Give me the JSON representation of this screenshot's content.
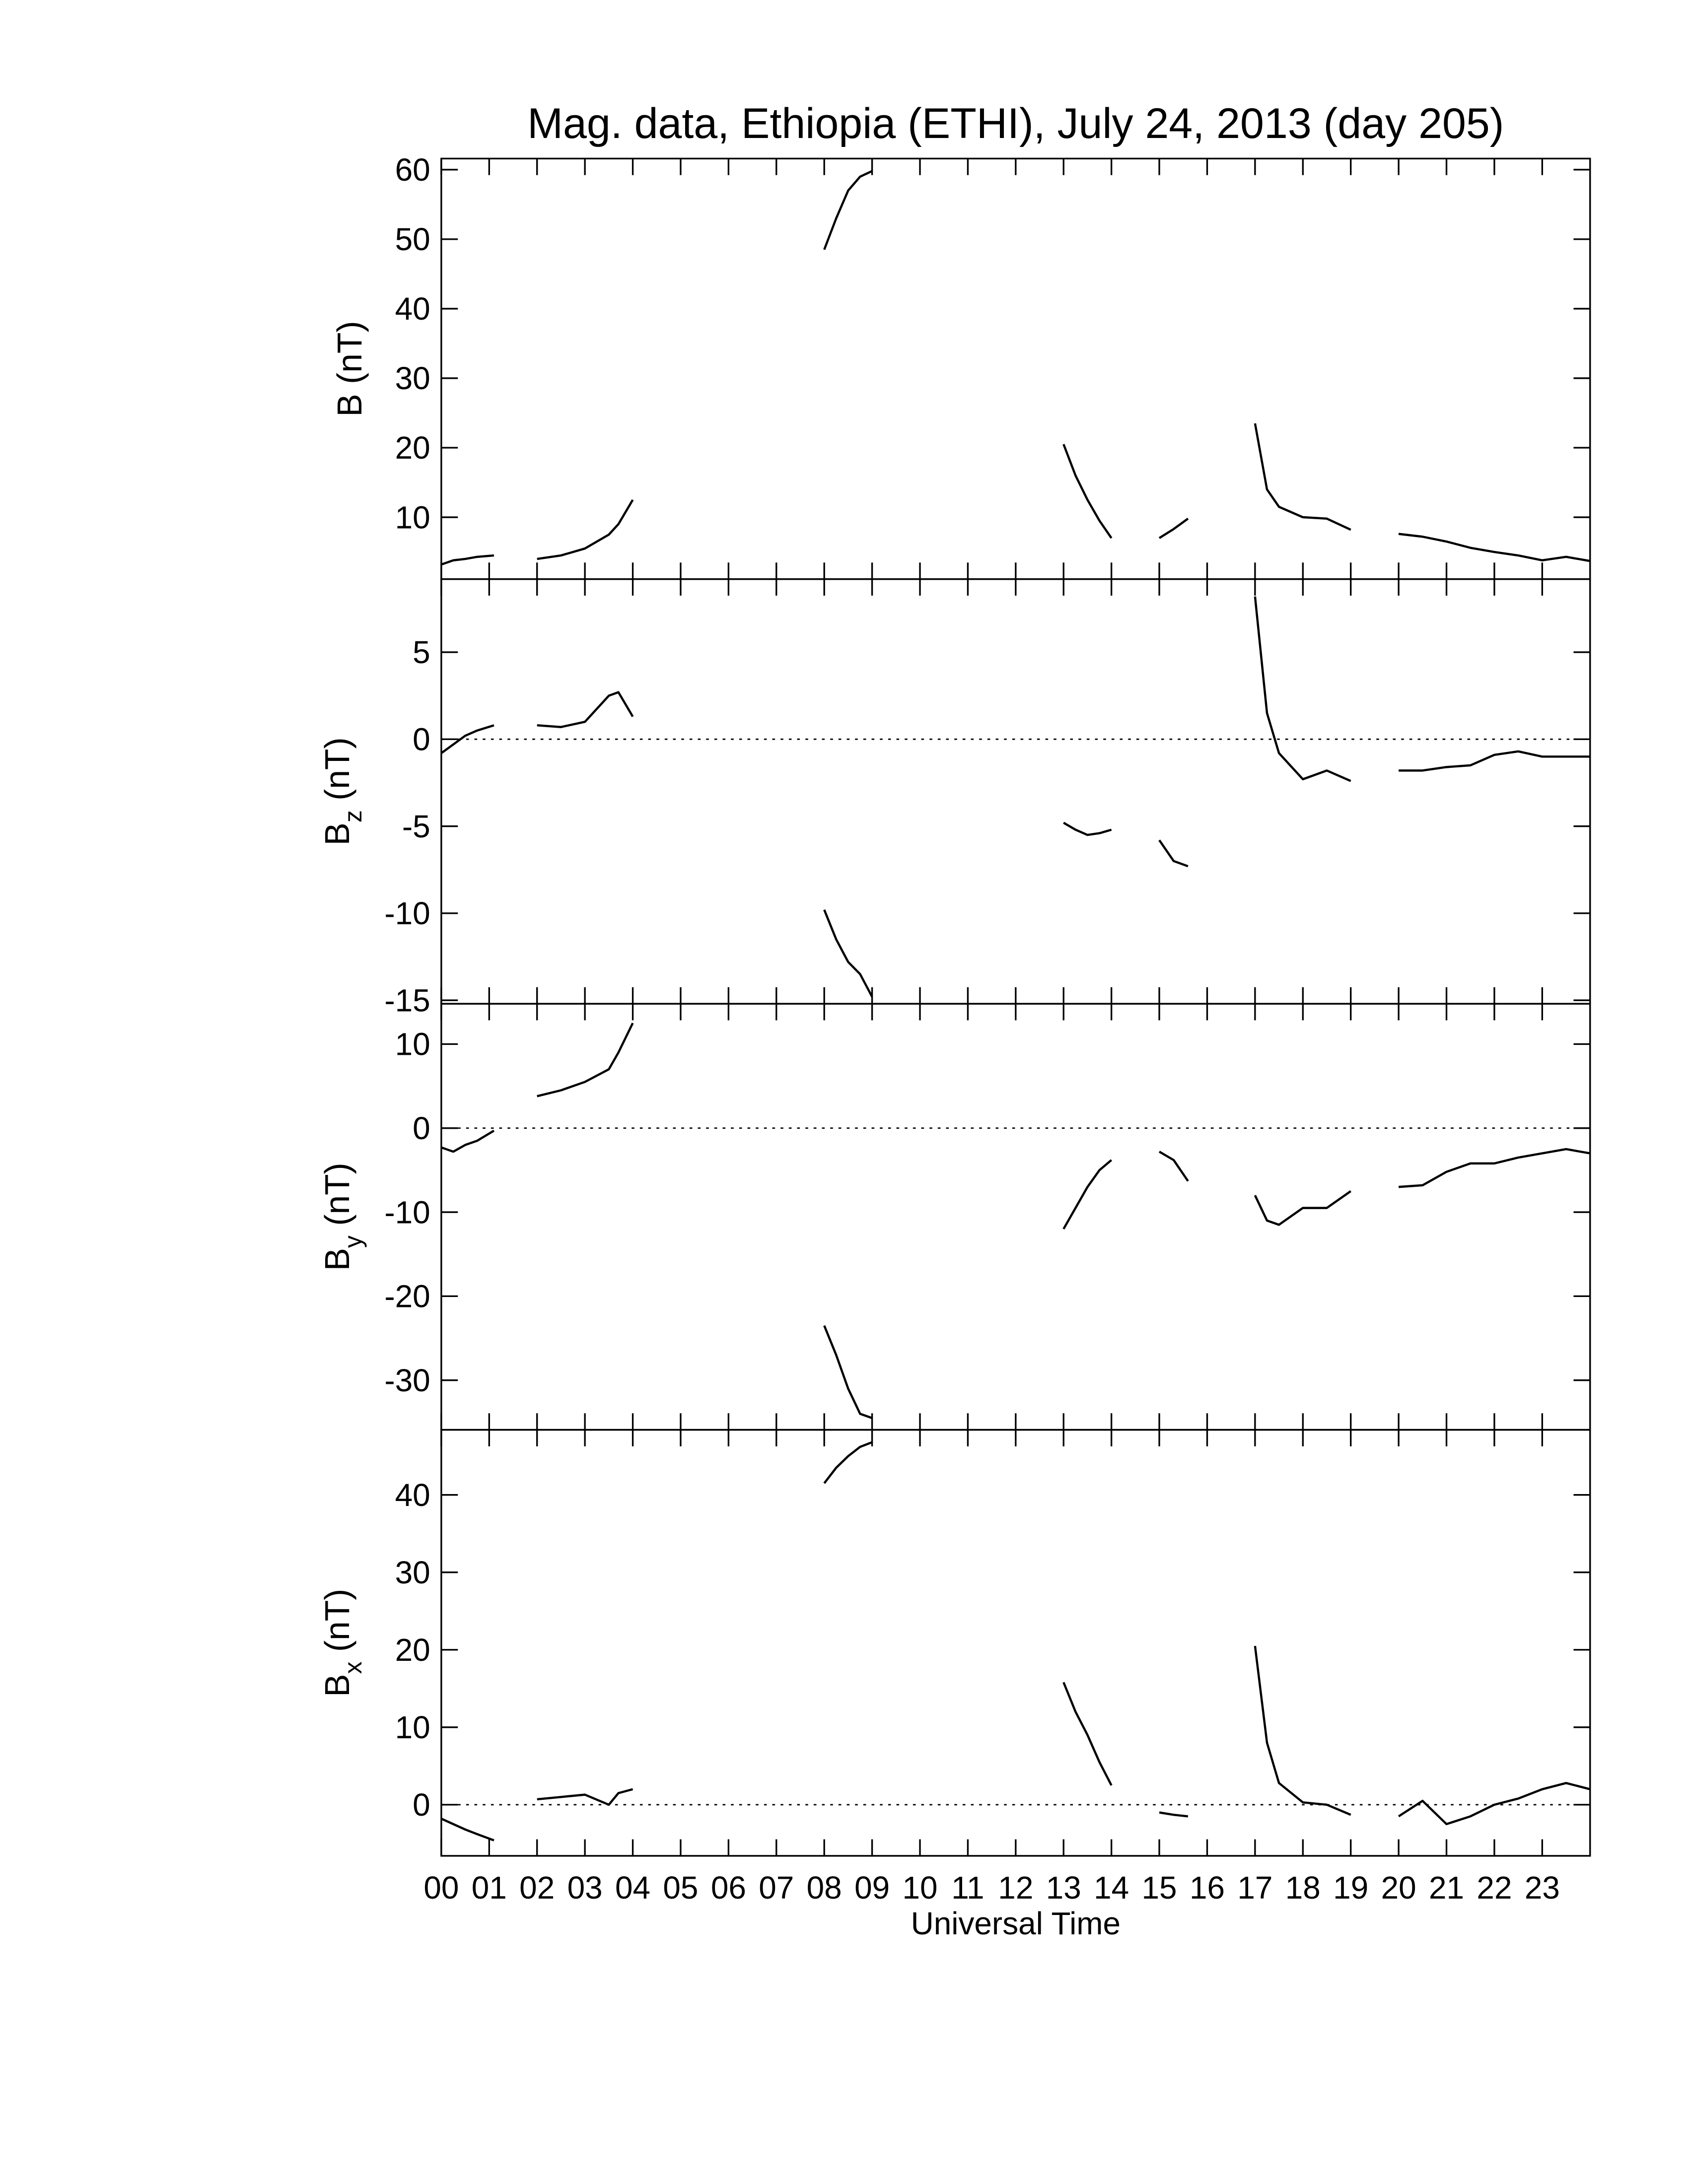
{
  "chart_data": [
    {
      "type": "line",
      "title": "Mag. data, Ethiopia (ETHI), July 24, 2013 (day 205)",
      "ylabel": "B",
      "ylabel_unit": "(nT)",
      "xlim": [
        0,
        24
      ],
      "ylim": [
        1.1,
        61.6
      ],
      "yticks": [
        10,
        20,
        30,
        40,
        50,
        60
      ],
      "zero_line": false,
      "series": [
        {
          "color": "#000000",
          "x": [
            0,
            0.25,
            0.5,
            0.75,
            1.1,
            1.5,
            2,
            2.5,
            3,
            3.5,
            3.7,
            4,
            6,
            8,
            8.25,
            8.5,
            8.75,
            9,
            11,
            13,
            13.25,
            13.5,
            13.75,
            14,
            14.5,
            15,
            15.3,
            15.6,
            16.3,
            17,
            17.25,
            17.5,
            18,
            18.5,
            19,
            19.5,
            20,
            20.5,
            21,
            21.5,
            22,
            22.5,
            23,
            23.5,
            24
          ],
          "values": [
            3.2,
            3.8,
            4.0,
            4.3,
            4.5,
            null,
            4.0,
            4.5,
            5.5,
            7.5,
            9,
            12.5,
            null,
            48.5,
            53,
            57,
            59,
            59.8,
            null,
            20.5,
            16,
            12.5,
            9.5,
            7,
            null,
            7,
            8.3,
            9.8,
            null,
            23.5,
            14,
            11.5,
            10,
            9.8,
            8.2,
            null,
            7.6,
            7.2,
            6.5,
            5.6,
            5,
            4.5,
            3.8,
            4.3,
            3.7
          ]
        }
      ]
    },
    {
      "type": "line",
      "ylabel": "B",
      "ylabel_subscript": "z",
      "ylabel_unit": "(nT)",
      "xlim": [
        0,
        24
      ],
      "ylim": [
        -15.2,
        9.2
      ],
      "yticks": [
        -15,
        -10,
        -5,
        0,
        5
      ],
      "zero_line": true,
      "series": [
        {
          "color": "#000000",
          "x": [
            0,
            0.25,
            0.5,
            0.75,
            1.1,
            1.5,
            2,
            2.5,
            3,
            3.5,
            3.7,
            4,
            6,
            8,
            8.25,
            8.5,
            8.75,
            9,
            11,
            13,
            13.25,
            13.5,
            13.75,
            14,
            14.5,
            15,
            15.3,
            15.6,
            16.3,
            17,
            17.25,
            17.5,
            18,
            18.5,
            19,
            19.5,
            20,
            20.5,
            21,
            21.5,
            22,
            22.5,
            23,
            23.5,
            24
          ],
          "values": [
            -0.8,
            -0.3,
            0.2,
            0.5,
            0.8,
            null,
            0.8,
            0.7,
            1.0,
            2.5,
            2.7,
            1.3,
            null,
            -9.8,
            -11.5,
            -12.8,
            -13.5,
            -14.8,
            null,
            -4.8,
            -5.2,
            -5.5,
            -5.4,
            -5.2,
            null,
            -5.8,
            -7,
            -7.3,
            null,
            8.2,
            1.5,
            -0.8,
            -2.3,
            -1.8,
            -2.4,
            null,
            -1.8,
            -1.8,
            -1.6,
            -1.5,
            -0.9,
            -0.7,
            -1.0,
            -1.0,
            -1.0
          ]
        }
      ]
    },
    {
      "type": "line",
      "ylabel": "B",
      "ylabel_subscript": "y",
      "ylabel_unit": "(nT)",
      "xlim": [
        0,
        24
      ],
      "ylim": [
        -35.9,
        14.8
      ],
      "yticks": [
        -30,
        -20,
        -10,
        0,
        10
      ],
      "zero_line": true,
      "series": [
        {
          "color": "#000000",
          "x": [
            0,
            0.25,
            0.5,
            0.75,
            1.1,
            1.5,
            2,
            2.5,
            3,
            3.5,
            3.7,
            4,
            6,
            8,
            8.25,
            8.5,
            8.75,
            9,
            11,
            13,
            13.25,
            13.5,
            13.75,
            14,
            14.5,
            15,
            15.3,
            15.6,
            16.3,
            17,
            17.25,
            17.5,
            18,
            18.5,
            19,
            19.5,
            20,
            20.5,
            21,
            21.5,
            22,
            22.5,
            23,
            23.5,
            24
          ],
          "values": [
            -2.3,
            -2.8,
            -2.0,
            -1.5,
            -0.3,
            null,
            3.8,
            4.5,
            5.5,
            7,
            9,
            12.5,
            null,
            -23.5,
            -27,
            -31,
            -34,
            -34.5,
            null,
            -12,
            -9.5,
            -7,
            -5,
            -3.8,
            null,
            -2.8,
            -3.8,
            -6.3,
            null,
            -8,
            -11,
            -11.5,
            -9.5,
            -9.5,
            -7.5,
            null,
            -7,
            -6.8,
            -5.2,
            -4.2,
            -4.2,
            -3.5,
            -3,
            -2.5,
            -3
          ]
        }
      ]
    },
    {
      "type": "line",
      "ylabel": "B",
      "ylabel_subscript": "x",
      "ylabel_unit": "(nT)",
      "xlabel": "Universal Time",
      "xlim": [
        0,
        24
      ],
      "ylim": [
        -6.6,
        48.4
      ],
      "yticks": [
        0,
        10,
        20,
        30,
        40
      ],
      "zero_line": true,
      "xticks": [
        {
          "value": 0,
          "label": "00"
        },
        {
          "value": 1,
          "label": "01"
        },
        {
          "value": 2,
          "label": "02"
        },
        {
          "value": 3,
          "label": "03"
        },
        {
          "value": 4,
          "label": "04"
        },
        {
          "value": 5,
          "label": "05"
        },
        {
          "value": 6,
          "label": "06"
        },
        {
          "value": 7,
          "label": "07"
        },
        {
          "value": 8,
          "label": "08"
        },
        {
          "value": 9,
          "label": "09"
        },
        {
          "value": 10,
          "label": "10"
        },
        {
          "value": 11,
          "label": "11"
        },
        {
          "value": 12,
          "label": "12"
        },
        {
          "value": 13,
          "label": "13"
        },
        {
          "value": 14,
          "label": "14"
        },
        {
          "value": 15,
          "label": "15"
        },
        {
          "value": 16,
          "label": "16"
        },
        {
          "value": 17,
          "label": "17"
        },
        {
          "value": 18,
          "label": "18"
        },
        {
          "value": 19,
          "label": "19"
        },
        {
          "value": 20,
          "label": "20"
        },
        {
          "value": 21,
          "label": "21"
        },
        {
          "value": 22,
          "label": "22"
        },
        {
          "value": 23,
          "label": "23"
        }
      ],
      "series": [
        {
          "color": "#000000",
          "x": [
            0,
            0.25,
            0.5,
            0.75,
            1.1,
            1.5,
            2,
            2.5,
            3,
            3.5,
            3.7,
            4,
            6,
            8,
            8.25,
            8.5,
            8.75,
            9,
            11,
            13,
            13.25,
            13.5,
            13.75,
            14,
            14.5,
            15,
            15.3,
            15.6,
            16.3,
            17,
            17.25,
            17.5,
            18,
            18.5,
            19,
            19.5,
            20,
            20.5,
            21,
            21.5,
            22,
            22.5,
            23,
            23.5,
            24
          ],
          "values": [
            -1.8,
            -2.5,
            -3.2,
            -3.8,
            -4.6,
            null,
            0.7,
            1,
            1.3,
            0,
            1.5,
            2,
            null,
            41.5,
            43.5,
            45,
            46.2,
            46.8,
            null,
            15.8,
            12,
            9,
            5.5,
            2.5,
            null,
            -1,
            -1.3,
            -1.5,
            null,
            20.5,
            8,
            2.8,
            0.3,
            0,
            -1.3,
            null,
            -1.5,
            0.5,
            -2.5,
            -1.5,
            0,
            0.8,
            2,
            2.8,
            2
          ]
        }
      ]
    }
  ]
}
